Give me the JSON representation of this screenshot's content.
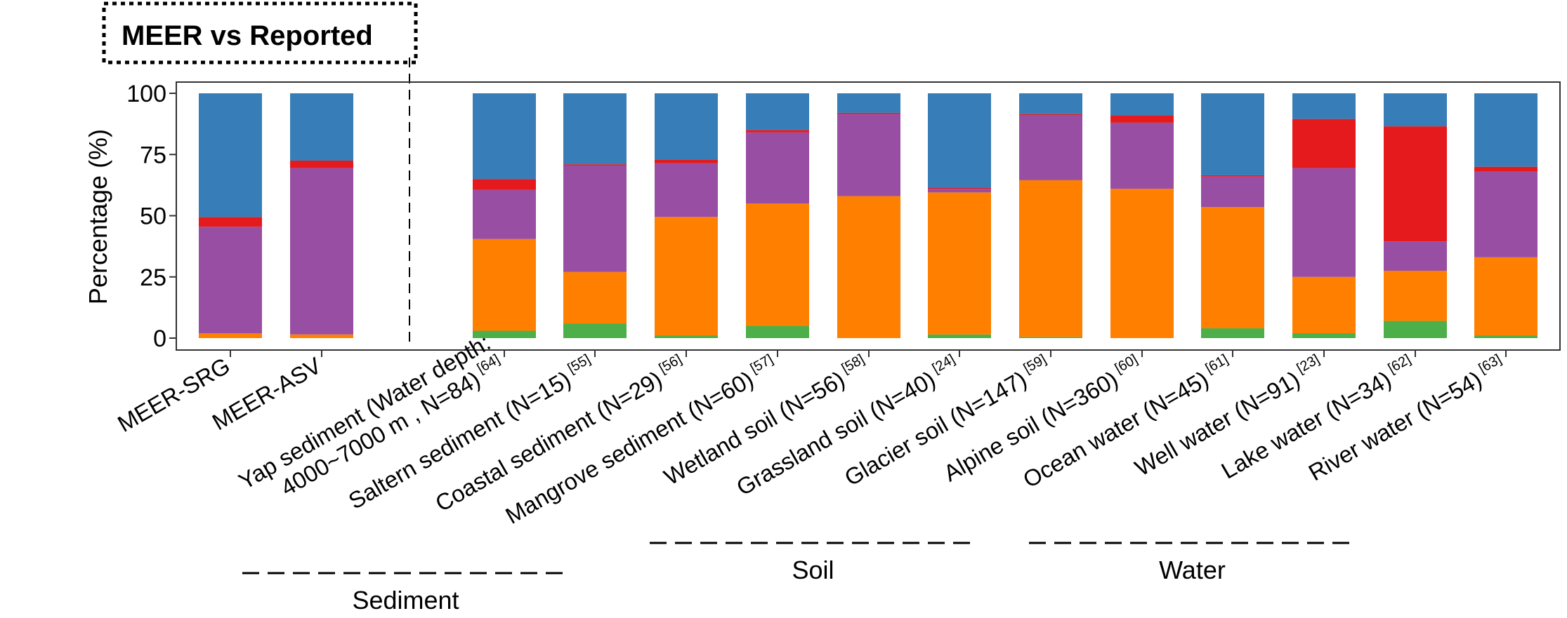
{
  "chart_data": {
    "type": "bar",
    "stacked": true,
    "title": "MEER vs Reported",
    "ylabel": "Percentage (%)",
    "xlabel": "",
    "ylim": [
      0,
      100
    ],
    "yticks": [
      0,
      25,
      50,
      75,
      100
    ],
    "grid": false,
    "legend": "none",
    "categories": [
      {
        "label": "MEER-SRG",
        "ref": ""
      },
      {
        "label": "MEER-ASV",
        "ref": ""
      },
      {
        "label": "Yap sediment (Water depth:\n4000~7000 m , N=84)",
        "ref": "[64]"
      },
      {
        "label": "Saltern sediment (N=15)",
        "ref": "[55]"
      },
      {
        "label": "Coastal sediment (N=29)",
        "ref": "[56]"
      },
      {
        "label": "Mangrove sediment (N=60)",
        "ref": "[57]"
      },
      {
        "label": "Wetland soil (N=56)",
        "ref": "[58]"
      },
      {
        "label": "Grassland soil (N=40)",
        "ref": "[24]"
      },
      {
        "label": "Glacier soil (N=147)",
        "ref": "[59]"
      },
      {
        "label": "Alpine soil  (N=360)",
        "ref": "[60]"
      },
      {
        "label": "Ocean water (N=45)",
        "ref": "[61]"
      },
      {
        "label": "Well water (N=91)",
        "ref": "[23]"
      },
      {
        "label": "Lake water (N=34)",
        "ref": "[62]"
      },
      {
        "label": "River water (N=54)",
        "ref": "[63]"
      }
    ],
    "series": [
      {
        "color": "#4daf4a",
        "values": [
          0,
          0,
          3,
          6,
          1,
          5,
          0,
          1.5,
          0.5,
          0,
          4,
          2,
          7,
          1
        ]
      },
      {
        "color": "#ff7f00",
        "values": [
          2,
          1.5,
          37.5,
          21,
          48.5,
          50,
          58,
          58,
          64,
          61,
          49.5,
          23,
          20.5,
          32
        ]
      },
      {
        "color": "#984ea3",
        "values": [
          43.5,
          68,
          20,
          43.5,
          22,
          29,
          33.5,
          1.5,
          26.5,
          27,
          12.5,
          44.5,
          12,
          35
        ]
      },
      {
        "color": "#e41a1c",
        "values": [
          4,
          3,
          4.5,
          0.5,
          1.5,
          1,
          0.5,
          0.5,
          0.5,
          3,
          0.5,
          20,
          47,
          2
        ]
      },
      {
        "color": "#377eb8",
        "values": [
          50.5,
          27.5,
          35,
          29,
          27,
          15,
          8,
          38.5,
          8.5,
          9,
          33.5,
          10.5,
          13.5,
          30
        ]
      }
    ],
    "groups": [
      {
        "label": "Sediment",
        "from": 2,
        "to": 5
      },
      {
        "label": "Soil",
        "from": 6,
        "to": 9
      },
      {
        "label": "Water",
        "from": 10,
        "to": 13
      }
    ]
  }
}
